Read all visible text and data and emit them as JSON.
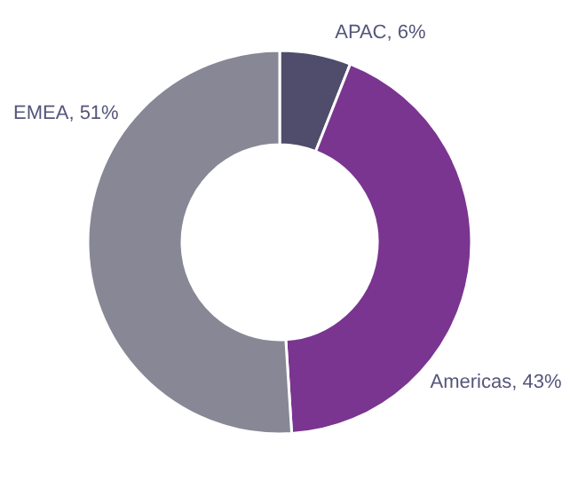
{
  "chart_data": {
    "type": "donut",
    "categories": [
      "APAC",
      "Americas",
      "EMEA"
    ],
    "values": [
      6,
      43,
      51
    ],
    "colors": [
      "#4f4d6b",
      "#7a3590",
      "#888795"
    ],
    "value_labels": [
      "6%",
      "43%",
      "51%"
    ]
  }
}
